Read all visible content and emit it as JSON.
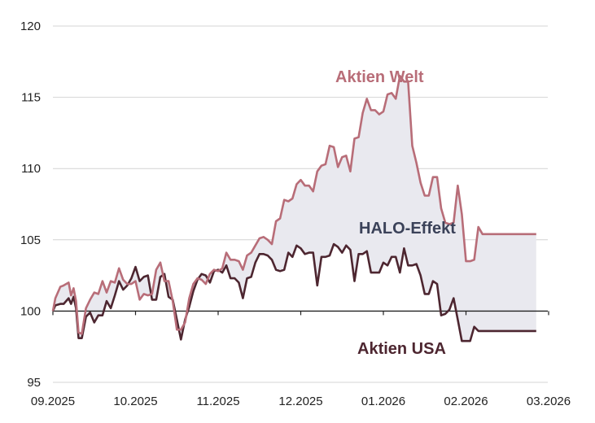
{
  "chart_data": {
    "type": "line",
    "title": "",
    "xlabel": "",
    "ylabel": "",
    "ylim": [
      95,
      120
    ],
    "yticks": [
      95,
      100,
      105,
      110,
      115,
      120
    ],
    "xticks": [
      "09.2025",
      "10.2025",
      "11.2025",
      "12.2025",
      "01.2026",
      "02.2026",
      "03.2026"
    ],
    "annotations": {
      "welt": "Aktien Welt",
      "usa": "Aktien USA",
      "effekt": "HALO-Effekt"
    },
    "colors": {
      "welt": "#b86d78",
      "usa": "#4d2630",
      "fill": "#e9e9ef",
      "effekt": "#3b4259",
      "grid": "#d4d4d4",
      "axis": "#222222"
    },
    "series": [
      {
        "name": "Aktien Welt",
        "x": [
          0,
          0.03,
          0.09,
          0.13,
          0.19,
          0.22,
          0.25,
          0.28,
          0.31,
          0.35,
          0.4,
          0.45,
          0.5,
          0.55,
          0.6,
          0.65,
          0.7,
          0.75,
          0.8,
          0.85,
          0.9,
          0.95,
          1.0,
          1.05,
          1.1,
          1.15,
          1.2,
          1.25,
          1.3,
          1.35,
          1.4,
          1.45,
          1.5,
          1.55,
          1.6,
          1.65,
          1.7,
          1.75,
          1.8,
          1.85,
          1.9,
          1.95,
          2.0,
          2.05,
          2.1,
          2.15,
          2.2,
          2.25,
          2.3,
          2.35,
          2.4,
          2.45,
          2.5,
          2.55,
          2.6,
          2.65,
          2.7,
          2.75,
          2.8,
          2.85,
          2.9,
          2.95,
          3.0,
          3.05,
          3.1,
          3.15,
          3.2,
          3.25,
          3.3,
          3.35,
          3.4,
          3.45,
          3.5,
          3.55,
          3.6,
          3.65,
          3.7,
          3.75,
          3.8,
          3.85,
          3.9,
          3.95,
          4.0,
          4.05,
          4.1,
          4.15,
          4.2,
          4.25,
          4.3,
          4.35,
          4.4,
          4.45,
          4.5,
          4.55,
          4.6,
          4.65,
          4.7,
          4.75,
          4.8,
          4.85,
          4.9,
          4.95,
          5.0,
          5.05,
          5.1,
          5.15,
          5.2,
          5.25,
          5.3,
          5.35,
          5.4,
          5.45,
          5.5,
          5.55,
          5.6,
          5.65,
          5.7,
          5.75,
          5.8,
          5.85
        ],
        "values": [
          100,
          100.9,
          101.7,
          101.8,
          102.0,
          101.1,
          101.6,
          100.7,
          98.5,
          98.4,
          100.2,
          100.8,
          101.3,
          101.2,
          102.1,
          101.3,
          102.1,
          102.0,
          103.0,
          102.2,
          101.9,
          101.9,
          102.1,
          100.8,
          101.2,
          101.1,
          101.2,
          102.9,
          103.4,
          102.1,
          102.1,
          100.7,
          98.7,
          98.7,
          99.2,
          100.9,
          101.9,
          102.3,
          102.2,
          101.9,
          102.6,
          102.9,
          102.8,
          103.0,
          104.1,
          103.6,
          103.6,
          103.5,
          102.9,
          103.9,
          104.1,
          104.6,
          105.1,
          105.2,
          105.0,
          104.7,
          106.3,
          106.5,
          107.8,
          107.7,
          107.9,
          108.9,
          109.2,
          108.8,
          108.8,
          108.4,
          109.8,
          110.2,
          110.3,
          111.6,
          111.5,
          110.1,
          110.8,
          110.9,
          109.8,
          112.1,
          112.2,
          113.9,
          114.9,
          114.1,
          114.1,
          113.8,
          114.0,
          115.2,
          115.3,
          114.9,
          116.5,
          116.1,
          116.1,
          111.6,
          110.4,
          109.0,
          108.1,
          108.1,
          109.4,
          109.4,
          107.2,
          106.2,
          106.1,
          106.2,
          108.8,
          106.8,
          103.5,
          103.5,
          103.6,
          105.9,
          105.4,
          105.4,
          105.4,
          105.4,
          105.4,
          105.4,
          105.4,
          105.4,
          105.4,
          105.4,
          105.4,
          105.4,
          105.4,
          105.4
        ]
      },
      {
        "name": "Aktien USA",
        "x": [
          0,
          0.03,
          0.09,
          0.13,
          0.19,
          0.22,
          0.25,
          0.28,
          0.31,
          0.35,
          0.4,
          0.45,
          0.5,
          0.55,
          0.6,
          0.65,
          0.7,
          0.75,
          0.8,
          0.85,
          0.9,
          0.95,
          1.0,
          1.05,
          1.1,
          1.15,
          1.2,
          1.25,
          1.3,
          1.35,
          1.4,
          1.45,
          1.5,
          1.55,
          1.6,
          1.65,
          1.7,
          1.75,
          1.8,
          1.85,
          1.9,
          1.95,
          2.0,
          2.05,
          2.1,
          2.15,
          2.2,
          2.25,
          2.3,
          2.35,
          2.4,
          2.45,
          2.5,
          2.55,
          2.6,
          2.65,
          2.7,
          2.75,
          2.8,
          2.85,
          2.9,
          2.95,
          3.0,
          3.05,
          3.1,
          3.15,
          3.2,
          3.25,
          3.3,
          3.35,
          3.4,
          3.45,
          3.5,
          3.55,
          3.6,
          3.65,
          3.7,
          3.75,
          3.8,
          3.85,
          3.9,
          3.95,
          4.0,
          4.05,
          4.1,
          4.15,
          4.2,
          4.25,
          4.3,
          4.35,
          4.4,
          4.45,
          4.5,
          4.55,
          4.6,
          4.65,
          4.7,
          4.75,
          4.8,
          4.85,
          4.9,
          4.95,
          5.0,
          5.05,
          5.1,
          5.15,
          5.2,
          5.25,
          5.3,
          5.35,
          5.4,
          5.45,
          5.5,
          5.55,
          5.6,
          5.65,
          5.7,
          5.75,
          5.8,
          5.85
        ],
        "values": [
          100,
          100.4,
          100.5,
          100.5,
          100.9,
          100.5,
          101.0,
          100.2,
          98.1,
          98.1,
          99.6,
          99.9,
          99.2,
          99.7,
          99.7,
          100.7,
          100.2,
          101.1,
          102.1,
          101.5,
          101.8,
          102.3,
          103.1,
          102.1,
          102.4,
          102.5,
          100.8,
          100.8,
          102.4,
          102.6,
          101.0,
          100.8,
          99.4,
          98.0,
          99.4,
          100.3,
          101.4,
          102.2,
          102.6,
          102.5,
          102.0,
          102.8,
          102.9,
          102.7,
          103.2,
          102.3,
          102.3,
          102.0,
          100.9,
          102.3,
          102.4,
          103.4,
          104.0,
          104.0,
          103.9,
          103.6,
          102.9,
          102.8,
          102.9,
          104.1,
          103.8,
          104.6,
          104.4,
          104.0,
          104.1,
          104.1,
          101.8,
          103.8,
          103.8,
          103.9,
          104.7,
          104.5,
          104.1,
          104.6,
          104.3,
          102.1,
          104.0,
          104.0,
          104.2,
          102.7,
          102.7,
          102.7,
          103.4,
          103.2,
          103.8,
          103.8,
          102.7,
          104.4,
          103.2,
          103.2,
          103.3,
          102.5,
          101.2,
          101.2,
          102.1,
          101.9,
          99.7,
          99.8,
          100.1,
          100.9,
          99.4,
          97.9,
          97.9,
          97.9,
          98.9,
          98.6,
          98.6,
          98.6,
          98.6,
          98.6,
          98.6,
          98.6,
          98.6,
          98.6,
          98.6,
          98.6,
          98.6,
          98.6,
          98.6,
          98.6
        ]
      }
    ]
  }
}
